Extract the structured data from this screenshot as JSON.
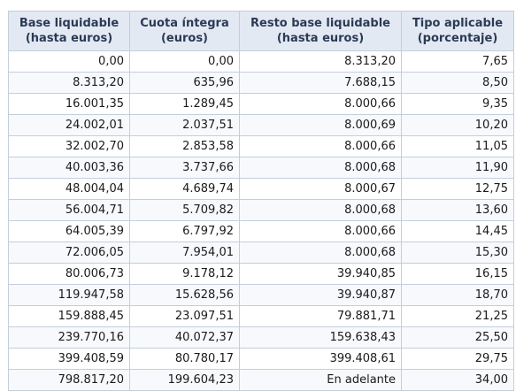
{
  "table": {
    "headers": [
      "Base liquidable (hasta euros)",
      "Cuota íntegra (euros)",
      "Resto base liquidable (hasta euros)",
      "Tipo aplicable (porcentaje)"
    ],
    "rows": [
      [
        "0,00",
        "0,00",
        "8.313,20",
        "7,65"
      ],
      [
        "8.313,20",
        "635,96",
        "7.688,15",
        "8,50"
      ],
      [
        "16.001,35",
        "1.289,45",
        "8.000,66",
        "9,35"
      ],
      [
        "24.002,01",
        "2.037,51",
        "8.000,69",
        "10,20"
      ],
      [
        "32.002,70",
        "2.853,58",
        "8.000,66",
        "11,05"
      ],
      [
        "40.003,36",
        "3.737,66",
        "8.000,68",
        "11,90"
      ],
      [
        "48.004,04",
        "4.689,74",
        "8.000,67",
        "12,75"
      ],
      [
        "56.004,71",
        "5.709,82",
        "8.000,68",
        "13,60"
      ],
      [
        "64.005,39",
        "6.797,92",
        "8.000,66",
        "14,45"
      ],
      [
        "72.006,05",
        "7.954,01",
        "8.000,68",
        "15,30"
      ],
      [
        "80.006,73",
        "9.178,12",
        "39.940,85",
        "16,15"
      ],
      [
        "119.947,58",
        "15.628,56",
        "39.940,87",
        "18,70"
      ],
      [
        "159.888,45",
        "23.097,51",
        "79.881,71",
        "21,25"
      ],
      [
        "239.770,16",
        "40.072,37",
        "159.638,43",
        "25,50"
      ],
      [
        "399.408,59",
        "80.780,17",
        "399.408,61",
        "29,75"
      ],
      [
        "798.817,20",
        "199.604,23",
        "En adelante",
        "34,00"
      ]
    ]
  }
}
